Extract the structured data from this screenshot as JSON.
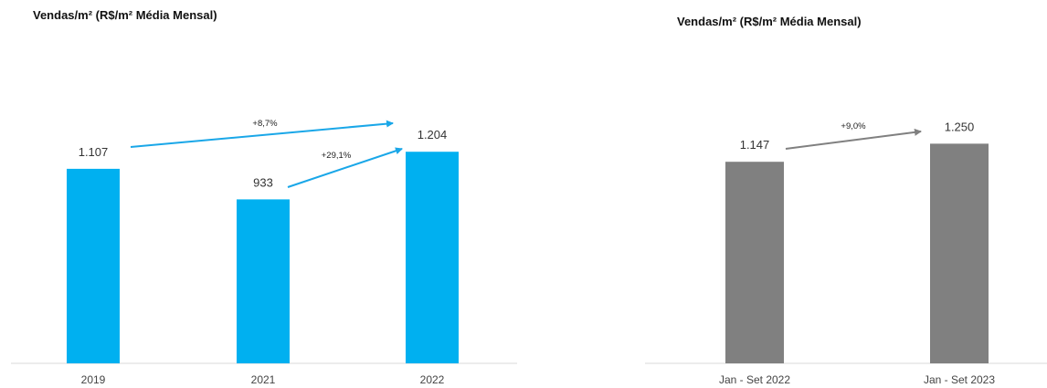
{
  "chart_data": [
    {
      "type": "bar",
      "title": "Vendas/m² (R$/m² Média Mensal)",
      "categories": [
        "2019",
        "2021",
        "2022"
      ],
      "values": [
        1107,
        933,
        1204
      ],
      "value_labels": [
        "1.107",
        "933",
        "1.204"
      ],
      "color": "#00b0f0",
      "annotations": [
        {
          "label": "+8,7%",
          "from": "2019",
          "to": "2022"
        },
        {
          "label": "+29,1%",
          "from": "2021",
          "to": "2022"
        }
      ],
      "grid": false,
      "legend": "none"
    },
    {
      "type": "bar",
      "title": "Vendas/m² (R$/m² Média Mensal)",
      "categories": [
        "Jan - Set 2022",
        "Jan - Set 2023"
      ],
      "values": [
        1147,
        1250
      ],
      "value_labels": [
        "1.147",
        "1.250"
      ],
      "color": "#808080",
      "annotations": [
        {
          "label": "+9,0%",
          "from": "Jan - Set 2022",
          "to": "Jan - Set 2023"
        }
      ],
      "grid": false,
      "legend": "none"
    }
  ]
}
